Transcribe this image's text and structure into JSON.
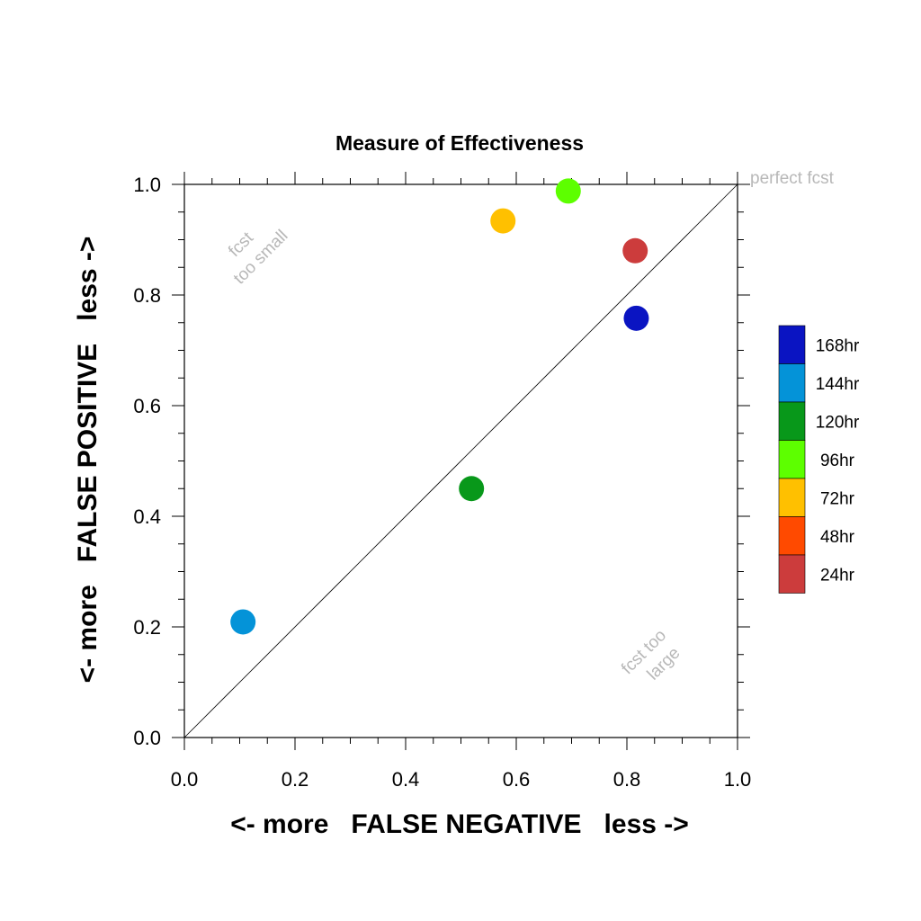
{
  "chart_data": {
    "type": "scatter",
    "title": "Measure of Effectiveness",
    "xlabel": "<- more   FALSE NEGATIVE   less ->",
    "ylabel": "<- more   FALSE POSITIVE   less ->",
    "xlim": [
      0,
      1
    ],
    "ylim": [
      0,
      1
    ],
    "x_ticks": [
      "0.0",
      "0.2",
      "0.4",
      "0.6",
      "0.8",
      "1.0"
    ],
    "y_ticks": [
      "0.0",
      "0.2",
      "0.4",
      "0.6",
      "0.8",
      "1.0"
    ],
    "reference_line": {
      "from": [
        0,
        0
      ],
      "to": [
        1,
        1
      ]
    },
    "annotations": {
      "perfect": "perfect fcst",
      "too_small": [
        "fcst",
        "too small"
      ],
      "too_large": [
        "fcst too",
        "large"
      ]
    },
    "points": [
      {
        "label": "168hr",
        "x": 0.817,
        "y": 0.758,
        "color": "#0a14c2"
      },
      {
        "label": "144hr",
        "x": 0.106,
        "y": 0.209,
        "color": "#0493d8"
      },
      {
        "label": "120hr",
        "x": 0.519,
        "y": 0.45,
        "color": "#08981a"
      },
      {
        "label": "96hr",
        "x": 0.694,
        "y": 0.988,
        "color": "#5dff00"
      },
      {
        "label": "72hr",
        "x": 0.576,
        "y": 0.934,
        "color": "#ffc000"
      },
      {
        "label": "24hr",
        "x": 0.815,
        "y": 0.88,
        "color": "#cc3c3c"
      }
    ],
    "legend": {
      "position": "right",
      "entries": [
        {
          "label": "168hr",
          "color": "#0a14c2"
        },
        {
          "label": "144hr",
          "color": "#0493d8"
        },
        {
          "label": "120hr",
          "color": "#08981a"
        },
        {
          "label": "96hr",
          "color": "#5dff00"
        },
        {
          "label": "72hr",
          "color": "#ffc000"
        },
        {
          "label": "48hr",
          "color": "#ff4a00"
        },
        {
          "label": "24hr",
          "color": "#cc3c3c"
        }
      ]
    }
  }
}
